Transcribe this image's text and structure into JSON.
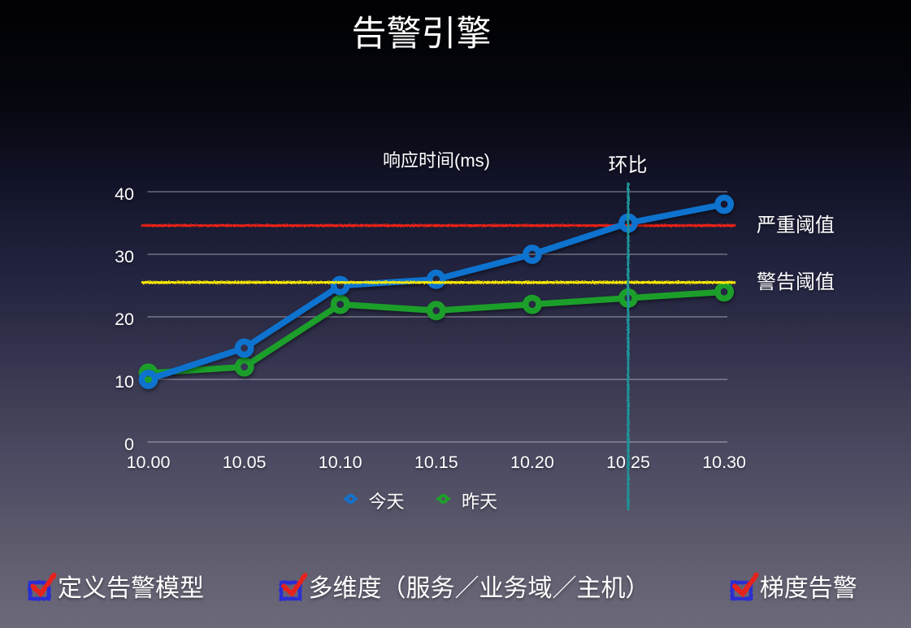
{
  "slide": {
    "title": "告警引擎"
  },
  "colors": {
    "today": "#1173cf",
    "yesterday": "#1e9f29",
    "severe": "#f42414",
    "warning": "#ffec00",
    "compare": "#1d9598",
    "grid": "rgba(255,255,255,0.43)",
    "text": "#ffffff",
    "checkbox_blue": "#2a2ed2",
    "check_red": "#e6231a"
  },
  "chart_data": {
    "type": "line",
    "title": "响应时间(ms)",
    "x_categories": [
      "10.00",
      "10.05",
      "10.10",
      "10.15",
      "10.20",
      "10.25",
      "10.30"
    ],
    "yticks": [
      "0",
      "10",
      "20",
      "30",
      "40"
    ],
    "ylim": [
      0,
      42
    ],
    "grid": true,
    "legend_position": "bottom",
    "series": [
      {
        "name": "昨天",
        "color_key": "yesterday",
        "values": [
          11,
          12,
          22,
          21,
          22,
          23,
          24
        ]
      },
      {
        "name": "今天",
        "color_key": "today",
        "values": [
          10,
          15,
          25,
          26,
          30,
          35,
          38
        ]
      }
    ],
    "thresholds": [
      {
        "label": "严重阈值",
        "value": 34.6,
        "color_key": "severe"
      },
      {
        "label": "警告阈值",
        "value": 25.5,
        "color_key": "warning"
      }
    ],
    "annotation": {
      "label": "环比",
      "x_category": "10.25"
    },
    "legend": [
      {
        "name": "今天",
        "color_key": "today"
      },
      {
        "name": "昨天",
        "color_key": "yesterday"
      }
    ]
  },
  "bullets": [
    {
      "label": "定义告警模型",
      "checked": true
    },
    {
      "label": "多维度（服务／业务域／主机）",
      "checked": true
    },
    {
      "label": "梯度告警",
      "checked": true
    }
  ]
}
